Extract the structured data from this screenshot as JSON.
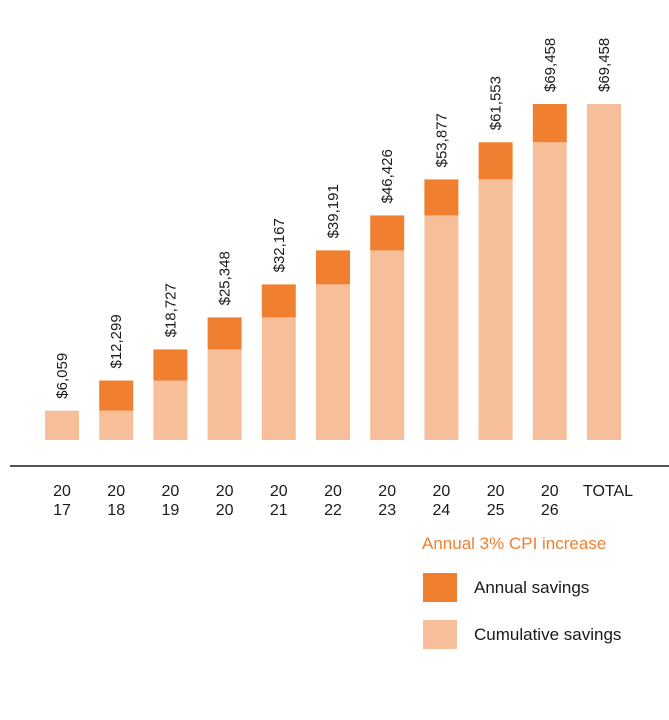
{
  "chart_data": {
    "type": "bar",
    "stacked": true,
    "title": "",
    "xlabel": "",
    "ylabel": "",
    "categories": [
      [
        "20",
        "17"
      ],
      [
        "20",
        "18"
      ],
      [
        "20",
        "19"
      ],
      [
        "20",
        "20"
      ],
      [
        "20",
        "21"
      ],
      [
        "20",
        "22"
      ],
      [
        "20",
        "23"
      ],
      [
        "20",
        "24"
      ],
      [
        "20",
        "25"
      ],
      [
        "20",
        "26"
      ],
      [
        "TOTAL"
      ]
    ],
    "series": [
      {
        "name": "Cumulative savings",
        "color": "#f7bf99",
        "values": [
          6059,
          6059,
          12299,
          18727,
          25348,
          32167,
          39191,
          46426,
          53877,
          61553,
          69458
        ]
      },
      {
        "name": "Annual savings",
        "color": "#f08030",
        "values": [
          0,
          6240,
          6428,
          6621,
          6819,
          7024,
          7235,
          7451,
          7676,
          7905,
          0
        ]
      }
    ],
    "data_labels": [
      "$6,059",
      "$12,299",
      "$18,727",
      "$25,348",
      "$32,167",
      "$39,191",
      "$46,426",
      "$53,877",
      "$61,553",
      "$69,458",
      "$69,458"
    ],
    "ylim": [
      0,
      69458
    ],
    "grid": false,
    "legend": {
      "title": "Annual 3% CPI increase",
      "placement": "bottom-right",
      "items": [
        {
          "label": "Annual savings",
          "color": "#f08030"
        },
        {
          "label": "Cumulative savings",
          "color": "#f7bf99"
        }
      ]
    }
  }
}
